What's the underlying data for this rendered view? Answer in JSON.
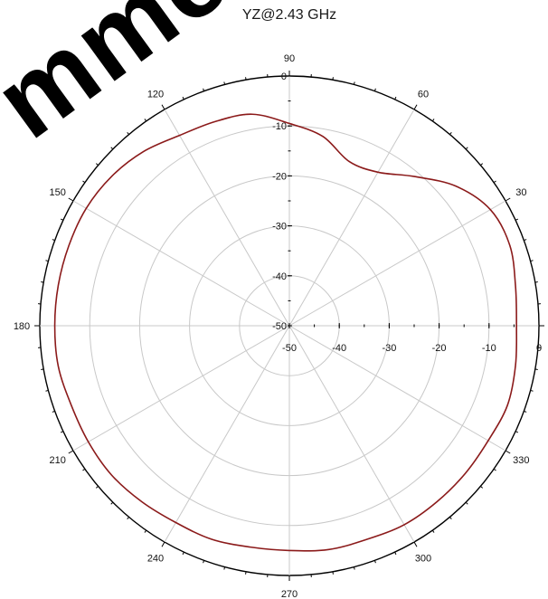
{
  "watermark": "mmend",
  "chart_data": {
    "type": "polar-line",
    "title": "YZ@2.43 GHz",
    "radial_range": [
      -50,
      0
    ],
    "radial_ticks": [
      -50,
      -40,
      -30,
      -20,
      -10,
      0
    ],
    "angular_ticks": [
      0,
      30,
      60,
      90,
      120,
      150,
      180,
      210,
      240,
      270,
      300,
      330
    ],
    "grid": true,
    "series": [
      {
        "color": "#8b1a1a",
        "points": [
          [
            0,
            -4.5
          ],
          [
            10,
            -4.0
          ],
          [
            20,
            -3.0
          ],
          [
            30,
            -3.5
          ],
          [
            40,
            -6.5
          ],
          [
            50,
            -11.0
          ],
          [
            60,
            -14.5
          ],
          [
            70,
            -15.0
          ],
          [
            80,
            -11.5
          ],
          [
            90,
            -9.5
          ],
          [
            100,
            -7.0
          ],
          [
            110,
            -6.5
          ],
          [
            120,
            -6.0
          ],
          [
            130,
            -4.5
          ],
          [
            140,
            -3.5
          ],
          [
            150,
            -3.0
          ],
          [
            160,
            -3.0
          ],
          [
            170,
            -3.0
          ],
          [
            180,
            -3.0
          ],
          [
            190,
            -3.0
          ],
          [
            200,
            -3.5
          ],
          [
            210,
            -3.5
          ],
          [
            220,
            -3.5
          ],
          [
            230,
            -4.0
          ],
          [
            240,
            -4.5
          ],
          [
            250,
            -4.5
          ],
          [
            260,
            -5.0
          ],
          [
            270,
            -5.0
          ],
          [
            280,
            -4.5
          ],
          [
            290,
            -4.5
          ],
          [
            300,
            -4.0
          ],
          [
            310,
            -4.0
          ],
          [
            320,
            -4.0
          ],
          [
            330,
            -4.0
          ],
          [
            340,
            -3.5
          ],
          [
            350,
            -4.0
          ]
        ]
      }
    ]
  }
}
